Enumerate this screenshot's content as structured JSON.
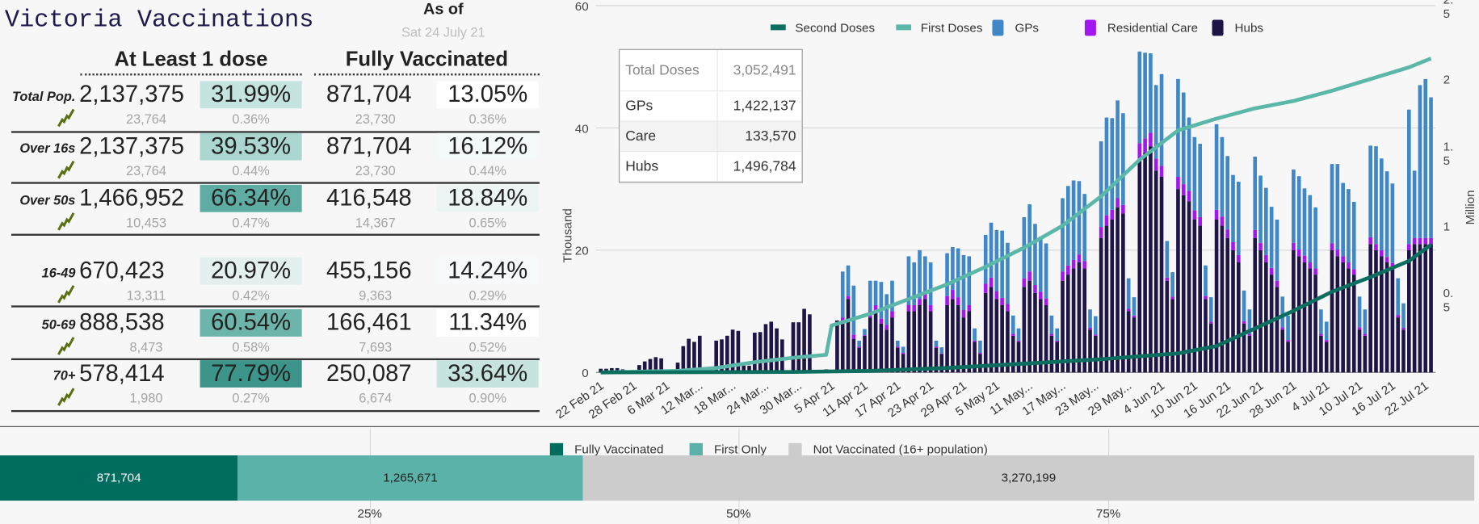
{
  "header": {
    "title": "Victoria Vaccinations",
    "as_of_label": "As of",
    "as_of_date": "Sat 24 July 21"
  },
  "table": {
    "col_headers": [
      "At Least 1 dose",
      "Fully Vaccinated"
    ],
    "rows": [
      {
        "label": "Total Pop.",
        "dose1": "2,137,375",
        "dose1_pct": "31.99%",
        "full": "871,704",
        "full_pct": "13.05%",
        "dose1_delta": "23,764",
        "dose1_pct_delta": "0.36%",
        "full_delta": "23,730",
        "full_pct_delta": "0.36%",
        "dose1_color": "#c5e3df",
        "full_color": "#ffffff"
      },
      {
        "label": "Over 16s",
        "dose1": "2,137,375",
        "dose1_pct": "39.53%",
        "full": "871,704",
        "full_pct": "16.12%",
        "dose1_delta": "23,764",
        "dose1_pct_delta": "0.44%",
        "full_delta": "23,730",
        "full_pct_delta": "0.44%",
        "dose1_color": "#acd7d1",
        "full_color": "#f4f9f9"
      },
      {
        "label": "Over 50s",
        "dose1": "1,466,952",
        "dose1_pct": "66.34%",
        "full": "416,548",
        "full_pct": "18.84%",
        "dose1_color": "#5fada2",
        "full_color": "#ecf5f4",
        "dose1_delta": "10,453",
        "dose1_pct_delta": "0.47%",
        "full_delta": "14,367",
        "full_pct_delta": "0.65%"
      },
      {
        "label": "16-49",
        "dose1": "670,423",
        "dose1_pct": "20.97%",
        "full": "455,156",
        "full_pct": "14.24%",
        "dose1_delta": "13,311",
        "dose1_pct_delta": "0.42%",
        "full_delta": "9,363",
        "full_pct_delta": "0.29%",
        "dose1_color": "#e3f0ef",
        "full_color": "#f6fafa"
      },
      {
        "label": "50-69",
        "dose1": "888,538",
        "dose1_pct": "60.54%",
        "full": "166,461",
        "full_pct": "11.34%",
        "dose1_delta": "8,473",
        "dose1_pct_delta": "0.58%",
        "full_delta": "7,693",
        "full_pct_delta": "0.52%",
        "dose1_color": "#6db4aa",
        "full_color": "#ffffff"
      },
      {
        "label": "70+",
        "dose1": "578,414",
        "dose1_pct": "77.79%",
        "full": "250,087",
        "full_pct": "33.64%",
        "dose1_delta": "1,980",
        "dose1_pct_delta": "0.27%",
        "full_delta": "6,674",
        "full_pct_delta": "0.90%",
        "dose1_color": "#3d9488",
        "full_color": "#c6e3df"
      }
    ]
  },
  "tooltip": {
    "rows": [
      {
        "label": "Total Doses",
        "value": "3,052,491"
      },
      {
        "label": "GPs",
        "value": "1,422,137"
      },
      {
        "label": "Care",
        "value": "133,570"
      },
      {
        "label": "Hubs",
        "value": "1,496,784"
      }
    ]
  },
  "chart_data": [
    {
      "type": "bar",
      "title": "",
      "start_date": "22 Feb 21",
      "ylabel": "Thousand",
      "y2label": "Million",
      "ylim": [
        0,
        60
      ],
      "y2lim": [
        0,
        2.5
      ],
      "yticks": [
        "0",
        "20",
        "40",
        "60"
      ],
      "y2ticks": [
        {
          "v": 0.5,
          "l": [
            "0.",
            "5"
          ]
        },
        {
          "v": 1,
          "l": [
            "1"
          ]
        },
        {
          "v": 1.5,
          "l": [
            "1.",
            "5"
          ]
        },
        {
          "v": 2,
          "l": [
            "2"
          ]
        },
        {
          "v": 2.5,
          "l": [
            "2.",
            "5"
          ]
        }
      ],
      "xtick_labels": [
        "22 Feb 21",
        "28 Feb 21",
        "6 Mar 21",
        "12 Mar...",
        "18 Mar...",
        "24 Mar...",
        "30 Mar...",
        "5 Apr 21",
        "11 Apr 21",
        "17 Apr 21",
        "23 Apr 21",
        "29 Apr 21",
        "5 May 21",
        "11 May...",
        "17 May...",
        "23 May...",
        "29 May...",
        "4 Jun 21",
        "10 Jun 21",
        "16 Jun 21",
        "22 Jun 21",
        "28 Jun 21",
        "4 Jul 21",
        "10 Jul 21",
        "16 Jul 21",
        "22 Jul 21"
      ],
      "xtick_every_days": 6,
      "legend": [
        {
          "name": "Second Doses",
          "color": "#0b6e5f",
          "kind": "line"
        },
        {
          "name": "First Doses",
          "color": "#5bb8a8",
          "kind": "line"
        },
        {
          "name": "GPs",
          "color": "#3f87c6",
          "kind": "bar"
        },
        {
          "name": "Residential Care",
          "color": "#a216f0",
          "kind": "bar"
        },
        {
          "name": "Hubs",
          "color": "#1e1446",
          "kind": "bar"
        }
      ],
      "series": [
        {
          "name": "Hubs",
          "axis": "left",
          "values": [
            0.6,
            0.6,
            0.7,
            0.7,
            0.5,
            0,
            0,
            1.2,
            1.8,
            2.2,
            2.5,
            2.3,
            0.3,
            0.5,
            1.6,
            4.3,
            5.5,
            5.0,
            6.0,
            0.2,
            0.3,
            5.2,
            5.4,
            6.0,
            7.0,
            6.8,
            1.1,
            1.1,
            6.5,
            6.6,
            7.9,
            8.3,
            7.2,
            5.4,
            0.3,
            8.2,
            8.2,
            10.4,
            9.5,
            0.3,
            0.3,
            0.5,
            0.3,
            8.5,
            8.0,
            12,
            5.5,
            4,
            6,
            9,
            10,
            8,
            7,
            9,
            4,
            3,
            10,
            10,
            11,
            12,
            10,
            4,
            3,
            11,
            12,
            11,
            9,
            10,
            5,
            3,
            13,
            14,
            12,
            11,
            10,
            6,
            5,
            14,
            15,
            13,
            12,
            11,
            6,
            5,
            15,
            16,
            17,
            18,
            17,
            7,
            6,
            22,
            24,
            25,
            27,
            26,
            10,
            9,
            35,
            36,
            37,
            33,
            32,
            15,
            12,
            30,
            29,
            28,
            25,
            24,
            12,
            8,
            25,
            24,
            22,
            20,
            18,
            8,
            6,
            22,
            20,
            18,
            16,
            14,
            7,
            5,
            20,
            19,
            18,
            17,
            16,
            6,
            5,
            20,
            19,
            18,
            17,
            16,
            7,
            6,
            21,
            20,
            19,
            18,
            17,
            9,
            7,
            20,
            21,
            21,
            21,
            21
          ]
        },
        {
          "name": "Residential Care",
          "axis": "left",
          "values": [
            0,
            0,
            0,
            0,
            0,
            0,
            0,
            0,
            0,
            0,
            0,
            0,
            0,
            0,
            0,
            0,
            0,
            0,
            0,
            0,
            0,
            0,
            0,
            0,
            0,
            0,
            0,
            0,
            0,
            0,
            0,
            0,
            0,
            0,
            0,
            0,
            0,
            0,
            0,
            0,
            0,
            0,
            0,
            0,
            1,
            0.5,
            0.7,
            0.2,
            0.1,
            1,
            1,
            0.8,
            0.8,
            1,
            0.2,
            0.2,
            1,
            1,
            1,
            1,
            1,
            0.2,
            0.1,
            1.5,
            1.5,
            1.3,
            1.2,
            1,
            0.2,
            0.2,
            1.5,
            1.5,
            1.3,
            1.2,
            1.2,
            0.3,
            0.2,
            1.4,
            1.5,
            1.3,
            1.2,
            1.1,
            0.3,
            0.2,
            1.5,
            1.5,
            1.4,
            1.3,
            1.2,
            0.3,
            0.2,
            1.8,
            1.7,
            1.6,
            1.5,
            1.4,
            0.4,
            0.3,
            2.5,
            2.3,
            2.2,
            2,
            1.8,
            0.5,
            0.4,
            2,
            1.8,
            1.7,
            1.5,
            1.4,
            0.5,
            0.3,
            1.6,
            1.5,
            1.4,
            1.3,
            1.2,
            0.4,
            0.3,
            1.3,
            1.2,
            1.2,
            1.1,
            1,
            0.4,
            0.3,
            1.2,
            1.1,
            1.1,
            1,
            1,
            0.3,
            0.3,
            1.1,
            1.1,
            1,
            1,
            0.9,
            0.4,
            0.3,
            1.1,
            1,
            1,
            0.9,
            0.9,
            0.4,
            0.3,
            1,
            1,
            1,
            1,
            1
          ]
        },
        {
          "name": "GPs",
          "axis": "left",
          "values": [
            0,
            0,
            0,
            0,
            0,
            0,
            0,
            0,
            0,
            0,
            0,
            0,
            0,
            0,
            0,
            0,
            0,
            0,
            0,
            0,
            0,
            0,
            0,
            0,
            0,
            0,
            0,
            0,
            0,
            0,
            0,
            0,
            0,
            0,
            0,
            0,
            0,
            0,
            0,
            0,
            0,
            0,
            0,
            0,
            7.5,
            5,
            8,
            1,
            1,
            5,
            4,
            6,
            5,
            5,
            1,
            1,
            8,
            7,
            8,
            6,
            7,
            1,
            1,
            7,
            7,
            8,
            9,
            8,
            2,
            2,
            8,
            9,
            10,
            11,
            10,
            3,
            2,
            10,
            11,
            10,
            9,
            9,
            3,
            2,
            12,
            13,
            13,
            12,
            11,
            3,
            3,
            14,
            16,
            15,
            16,
            15,
            5,
            3,
            15,
            14,
            13,
            12,
            15,
            6,
            4,
            16,
            15,
            12,
            12,
            12,
            5,
            4,
            14,
            13,
            12,
            11,
            12,
            5,
            4,
            12,
            11,
            11,
            10,
            10,
            5,
            4,
            12,
            12,
            11,
            11,
            10,
            4,
            3,
            13,
            14,
            12,
            12,
            11,
            5,
            4,
            15,
            16,
            15,
            14,
            13,
            6,
            4,
            22,
            11,
            25,
            26,
            23
          ]
        },
        {
          "name": "First Doses",
          "axis": "right",
          "kind": "cumulative",
          "points": [
            [
              0,
              0
            ],
            [
              14,
              0.01
            ],
            [
              21,
              0.03
            ],
            [
              28,
              0.07
            ],
            [
              35,
              0.1
            ],
            [
              41,
              0.12
            ],
            [
              42,
              0.32
            ],
            [
              49,
              0.4
            ],
            [
              56,
              0.5
            ],
            [
              63,
              0.6
            ],
            [
              70,
              0.72
            ],
            [
              77,
              0.85
            ],
            [
              84,
              1.0
            ],
            [
              91,
              1.2
            ],
            [
              98,
              1.45
            ],
            [
              105,
              1.65
            ],
            [
              112,
              1.73
            ],
            [
              119,
              1.8
            ],
            [
              126,
              1.85
            ],
            [
              133,
              1.92
            ],
            [
              140,
              2.0
            ],
            [
              147,
              2.08
            ],
            [
              151,
              2.14
            ]
          ]
        },
        {
          "name": "Second Doses",
          "axis": "right",
          "kind": "cumulative",
          "points": [
            [
              0,
              0
            ],
            [
              35,
              0.003
            ],
            [
              49,
              0.01
            ],
            [
              63,
              0.03
            ],
            [
              77,
              0.06
            ],
            [
              91,
              0.09
            ],
            [
              105,
              0.13
            ],
            [
              112,
              0.18
            ],
            [
              119,
              0.3
            ],
            [
              126,
              0.42
            ],
            [
              133,
              0.55
            ],
            [
              140,
              0.65
            ],
            [
              147,
              0.76
            ],
            [
              151,
              0.87
            ]
          ]
        }
      ]
    },
    {
      "type": "bar",
      "orientation": "horizontal-stacked",
      "legend": [
        {
          "name": "Fully Vaccinated",
          "color": "#006d5f"
        },
        {
          "name": "First Only",
          "color": "#5ab2a8"
        },
        {
          "name": "Not Vaccinated (16+ population)",
          "color": "#cccccc"
        }
      ],
      "values": [
        871704,
        1265671,
        3270199
      ],
      "value_labels": [
        "871,704",
        "1,265,671",
        "3,270,199"
      ],
      "xticks": [
        "25%",
        "50%",
        "75%"
      ]
    }
  ]
}
